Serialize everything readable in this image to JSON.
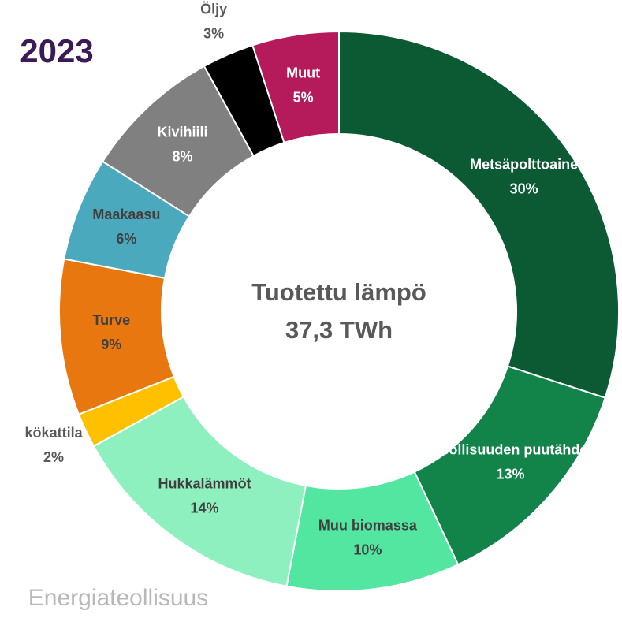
{
  "chart_data": {
    "type": "donut",
    "title": "2023",
    "center_text": [
      "Tuotettu lämpö",
      "37,3 TWh"
    ],
    "footer": "Energiateollisuus",
    "categories": [
      "Metsäpolttoaine",
      "Teollisuuden puutähde",
      "Muu biomassa",
      "Hukkalämmöt",
      "kökattila",
      "Turve",
      "Maakaasu",
      "Kivihiili",
      "Öljy",
      "Muut"
    ],
    "values": [
      30,
      13,
      10,
      14,
      2,
      9,
      6,
      8,
      3,
      5
    ],
    "value_labels": [
      "30%",
      "13%",
      "10%",
      "14%",
      "2%",
      "9%",
      "6%",
      "8%",
      "3%",
      "5%"
    ],
    "colors": [
      "#0b5a34",
      "#12844a",
      "#52e6a0",
      "#8ef0bf",
      "#ffc000",
      "#e8770f",
      "#4ba9bd",
      "#808080",
      "#000000",
      "#b51a5a"
    ]
  }
}
